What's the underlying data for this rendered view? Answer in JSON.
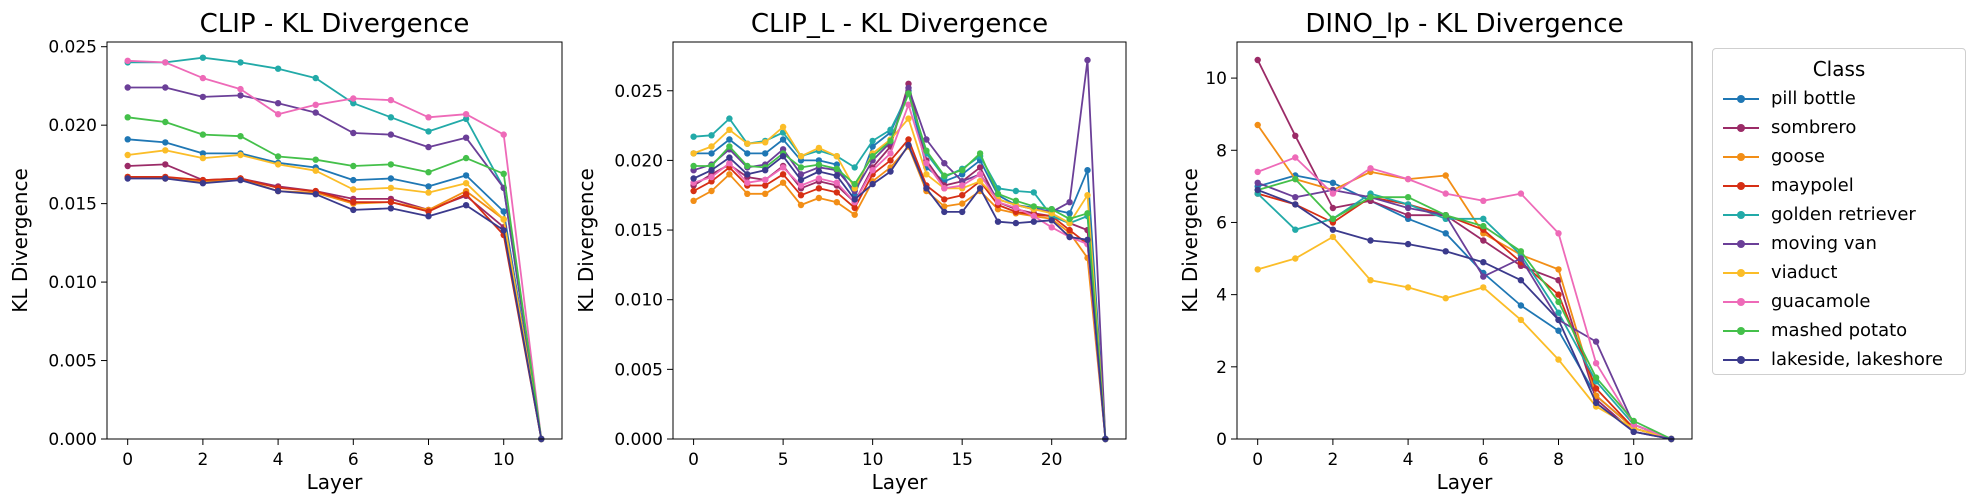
{
  "legend": {
    "title": "Class",
    "position": "outside-right",
    "entries": [
      {
        "name": "pill bottle",
        "color": "#1f77b4"
      },
      {
        "name": "sombrero",
        "color": "#9b2b67"
      },
      {
        "name": "goose",
        "color": "#f28e16"
      },
      {
        "name": "maypolel",
        "color": "#d62f14"
      },
      {
        "name": "golden retriever",
        "color": "#22aaa8"
      },
      {
        "name": "moving van",
        "color": "#6b3f98"
      },
      {
        "name": "viaduct",
        "color": "#fbbd28"
      },
      {
        "name": "guacamole",
        "color": "#ee6ab8"
      },
      {
        "name": "mashed potato",
        "color": "#44c04a"
      },
      {
        "name": "lakeside, lakeshore",
        "color": "#3b3a8c"
      }
    ]
  },
  "chart_data": [
    {
      "type": "line",
      "title": "CLIP - KL Divergence",
      "xlabel": "Layer",
      "ylabel": "KL Divergence",
      "xlim": [
        -0.55,
        11.55
      ],
      "ylim": [
        0,
        0.0253
      ],
      "xticks": [
        0,
        2,
        4,
        6,
        8,
        10
      ],
      "xtick_labels": [
        "0",
        "2",
        "4",
        "6",
        "8",
        "10"
      ],
      "yticks": [
        0,
        0.005,
        0.01,
        0.015,
        0.02,
        0.025
      ],
      "ytick_labels": [
        "0.000",
        "0.005",
        "0.010",
        "0.015",
        "0.020",
        "0.025"
      ],
      "grid": false,
      "x": [
        0,
        1,
        2,
        3,
        4,
        5,
        6,
        7,
        8,
        9,
        10,
        11
      ],
      "series": [
        {
          "name": "pill bottle",
          "values": [
            0.0191,
            0.0189,
            0.0182,
            0.0182,
            0.0176,
            0.0173,
            0.0165,
            0.0166,
            0.0161,
            0.0168,
            0.0145,
            0.0
          ]
        },
        {
          "name": "sombrero",
          "values": [
            0.0174,
            0.0175,
            0.0165,
            0.0166,
            0.0161,
            0.0158,
            0.0153,
            0.0153,
            0.0146,
            0.0155,
            0.0135,
            0.0
          ]
        },
        {
          "name": "goose",
          "values": [
            0.0167,
            0.0166,
            0.0164,
            0.0166,
            0.0158,
            0.0157,
            0.015,
            0.0151,
            0.0146,
            0.0158,
            0.014,
            0.0
          ]
        },
        {
          "name": "maypolel",
          "values": [
            0.0167,
            0.0167,
            0.0165,
            0.0166,
            0.016,
            0.0158,
            0.0151,
            0.0151,
            0.0145,
            0.0156,
            0.013,
            0.0
          ]
        },
        {
          "name": "golden retriever",
          "values": [
            0.024,
            0.024,
            0.0243,
            0.024,
            0.0236,
            0.023,
            0.0214,
            0.0205,
            0.0196,
            0.0204,
            0.016,
            0.0
          ]
        },
        {
          "name": "moving van",
          "values": [
            0.0224,
            0.0224,
            0.0218,
            0.0219,
            0.0214,
            0.0208,
            0.0195,
            0.0194,
            0.0186,
            0.0192,
            0.016,
            0.0
          ]
        },
        {
          "name": "viaduct",
          "values": [
            0.0181,
            0.0184,
            0.0179,
            0.0181,
            0.0175,
            0.0171,
            0.0159,
            0.016,
            0.0157,
            0.0163,
            0.014,
            0.0
          ]
        },
        {
          "name": "guacamole",
          "values": [
            0.0241,
            0.024,
            0.023,
            0.0223,
            0.0207,
            0.0213,
            0.0217,
            0.0216,
            0.0205,
            0.0207,
            0.0194,
            0.0
          ]
        },
        {
          "name": "mashed potato",
          "values": [
            0.0205,
            0.0202,
            0.0194,
            0.0193,
            0.018,
            0.0178,
            0.0174,
            0.0175,
            0.017,
            0.0179,
            0.0169,
            0.0
          ]
        },
        {
          "name": "lakeside, lakeshore",
          "values": [
            0.0166,
            0.0166,
            0.0163,
            0.0165,
            0.0158,
            0.0156,
            0.0146,
            0.0147,
            0.0142,
            0.0149,
            0.0133,
            0.0
          ]
        }
      ]
    },
    {
      "type": "line",
      "title": "CLIP_L - KL Divergence",
      "xlabel": "Layer",
      "ylabel": "KL Divergence",
      "xlim": [
        -1.15,
        24.15
      ],
      "ylim": [
        0,
        0.0285
      ],
      "xticks": [
        0,
        5,
        10,
        15,
        20
      ],
      "xtick_labels": [
        "0",
        "5",
        "10",
        "15",
        "20"
      ],
      "yticks": [
        0,
        0.005,
        0.01,
        0.015,
        0.02,
        0.025
      ],
      "ytick_labels": [
        "0.000",
        "0.005",
        "0.010",
        "0.015",
        "0.020",
        "0.025"
      ],
      "grid": false,
      "x": [
        0,
        1,
        2,
        3,
        4,
        5,
        6,
        7,
        8,
        9,
        10,
        11,
        12,
        13,
        14,
        15,
        16,
        17,
        18,
        19,
        20,
        21,
        22,
        23
      ],
      "series": [
        {
          "name": "pill bottle",
          "values": [
            0.0205,
            0.0205,
            0.0215,
            0.0205,
            0.0205,
            0.0215,
            0.02,
            0.02,
            0.0197,
            0.0175,
            0.021,
            0.022,
            0.025,
            0.0195,
            0.0185,
            0.019,
            0.02,
            0.0175,
            0.0168,
            0.0166,
            0.0165,
            0.0162,
            0.0193,
            0.0
          ]
        },
        {
          "name": "sombrero",
          "values": [
            0.0182,
            0.019,
            0.0197,
            0.0188,
            0.0186,
            0.0196,
            0.018,
            0.0185,
            0.0182,
            0.017,
            0.0195,
            0.021,
            0.0255,
            0.02,
            0.0182,
            0.0185,
            0.0195,
            0.017,
            0.0165,
            0.0162,
            0.016,
            0.0155,
            0.015,
            0.0
          ]
        },
        {
          "name": "goose",
          "values": [
            0.0171,
            0.0178,
            0.019,
            0.0176,
            0.0176,
            0.0184,
            0.0168,
            0.0173,
            0.017,
            0.0161,
            0.0185,
            0.0195,
            0.021,
            0.0178,
            0.0167,
            0.0169,
            0.0178,
            0.0165,
            0.0162,
            0.016,
            0.0158,
            0.0148,
            0.013,
            0.0
          ]
        },
        {
          "name": "maypolel",
          "values": [
            0.0178,
            0.0185,
            0.0195,
            0.0182,
            0.0182,
            0.019,
            0.0175,
            0.018,
            0.0177,
            0.0166,
            0.019,
            0.02,
            0.0215,
            0.0182,
            0.0172,
            0.0175,
            0.0185,
            0.0168,
            0.0163,
            0.0161,
            0.016,
            0.015,
            0.014,
            0.0
          ]
        },
        {
          "name": "golden retriever",
          "values": [
            0.0217,
            0.0218,
            0.023,
            0.0212,
            0.0214,
            0.022,
            0.0203,
            0.0207,
            0.0203,
            0.0195,
            0.0214,
            0.0222,
            0.0248,
            0.0205,
            0.0188,
            0.0194,
            0.0203,
            0.018,
            0.0178,
            0.0177,
            0.016,
            0.0155,
            0.016,
            0.0
          ]
        },
        {
          "name": "moving van",
          "values": [
            0.0193,
            0.0197,
            0.0208,
            0.0195,
            0.0197,
            0.0208,
            0.019,
            0.0195,
            0.0193,
            0.0178,
            0.02,
            0.0213,
            0.0252,
            0.0215,
            0.0198,
            0.0185,
            0.019,
            0.0172,
            0.0168,
            0.0165,
            0.0163,
            0.017,
            0.0272,
            0.0
          ]
        },
        {
          "name": "viaduct",
          "values": [
            0.0205,
            0.021,
            0.0222,
            0.0212,
            0.0213,
            0.0224,
            0.0203,
            0.0209,
            0.0203,
            0.018,
            0.0205,
            0.0215,
            0.023,
            0.019,
            0.018,
            0.018,
            0.0185,
            0.0172,
            0.0168,
            0.0165,
            0.0162,
            0.0155,
            0.0175,
            0.0
          ]
        },
        {
          "name": "guacamole",
          "values": [
            0.0184,
            0.0188,
            0.0198,
            0.0184,
            0.0186,
            0.0195,
            0.0182,
            0.0187,
            0.0184,
            0.017,
            0.0193,
            0.0205,
            0.024,
            0.0198,
            0.018,
            0.0182,
            0.019,
            0.017,
            0.0166,
            0.016,
            0.0152,
            0.0145,
            0.014,
            0.0
          ]
        },
        {
          "name": "mashed potato",
          "values": [
            0.0196,
            0.0196,
            0.021,
            0.0196,
            0.0195,
            0.0205,
            0.0195,
            0.0197,
            0.0194,
            0.0183,
            0.0203,
            0.0214,
            0.0248,
            0.0207,
            0.0189,
            0.0193,
            0.0205,
            0.0176,
            0.0171,
            0.0167,
            0.0165,
            0.0158,
            0.0162,
            0.0
          ]
        },
        {
          "name": "lakeside, lakeshore",
          "values": [
            0.0187,
            0.0193,
            0.0202,
            0.019,
            0.0193,
            0.0203,
            0.0186,
            0.0192,
            0.0189,
            0.0172,
            0.0183,
            0.0192,
            0.0211,
            0.018,
            0.0163,
            0.0163,
            0.018,
            0.0156,
            0.0155,
            0.0156,
            0.0157,
            0.0145,
            0.0143,
            0.0
          ]
        }
      ]
    },
    {
      "type": "line",
      "title": "DINO_lp - KL Divergence",
      "xlabel": "Layer",
      "ylabel": "KL Divergence",
      "xlim": [
        -0.55,
        11.55
      ],
      "ylim": [
        0,
        11.0
      ],
      "xticks": [
        0,
        2,
        4,
        6,
        8,
        10
      ],
      "xtick_labels": [
        "0",
        "2",
        "4",
        "6",
        "8",
        "10"
      ],
      "yticks": [
        0,
        2,
        4,
        6,
        8,
        10
      ],
      "ytick_labels": [
        "0",
        "2",
        "4",
        "6",
        "8",
        "10"
      ],
      "grid": false,
      "x": [
        0,
        1,
        2,
        3,
        4,
        5,
        6,
        7,
        8,
        9,
        10,
        11
      ],
      "series": [
        {
          "name": "pill bottle",
          "values": [
            7.0,
            7.3,
            7.1,
            6.6,
            6.1,
            5.7,
            4.6,
            3.7,
            3.0,
            1.2,
            0.3,
            0.0
          ]
        },
        {
          "name": "sombrero",
          "values": [
            10.5,
            8.4,
            6.4,
            6.6,
            6.2,
            6.2,
            5.5,
            4.8,
            4.4,
            1.1,
            0.2,
            0.0
          ]
        },
        {
          "name": "goose",
          "values": [
            8.7,
            7.2,
            6.9,
            7.4,
            7.2,
            7.3,
            5.7,
            5.1,
            4.7,
            1.2,
            0.3,
            0.0
          ]
        },
        {
          "name": "maypolel",
          "values": [
            6.8,
            6.5,
            6.0,
            6.7,
            6.5,
            6.2,
            5.8,
            4.9,
            4.0,
            1.4,
            0.3,
            0.0
          ]
        },
        {
          "name": "golden retriever",
          "values": [
            6.8,
            5.8,
            6.1,
            6.8,
            6.5,
            6.1,
            6.1,
            5.1,
            3.5,
            1.6,
            0.4,
            0.0
          ]
        },
        {
          "name": "moving van",
          "values": [
            7.1,
            6.7,
            6.9,
            6.7,
            6.4,
            6.2,
            4.5,
            5.0,
            3.3,
            2.7,
            0.4,
            0.0
          ]
        },
        {
          "name": "viaduct",
          "values": [
            4.7,
            5.0,
            5.6,
            4.4,
            4.2,
            3.9,
            4.2,
            3.3,
            2.2,
            0.9,
            0.3,
            0.0
          ]
        },
        {
          "name": "guacamole",
          "values": [
            7.4,
            7.8,
            6.8,
            7.5,
            7.2,
            6.8,
            6.6,
            6.8,
            5.7,
            2.1,
            0.4,
            0.0
          ]
        },
        {
          "name": "mashed potato",
          "values": [
            6.9,
            7.2,
            6.1,
            6.7,
            6.7,
            6.2,
            5.9,
            5.2,
            3.8,
            1.7,
            0.5,
            0.0
          ]
        },
        {
          "name": "lakeside, lakeshore",
          "values": [
            6.9,
            6.5,
            5.8,
            5.5,
            5.4,
            5.2,
            4.9,
            4.4,
            3.3,
            1.0,
            0.2,
            0.0
          ]
        }
      ]
    }
  ]
}
